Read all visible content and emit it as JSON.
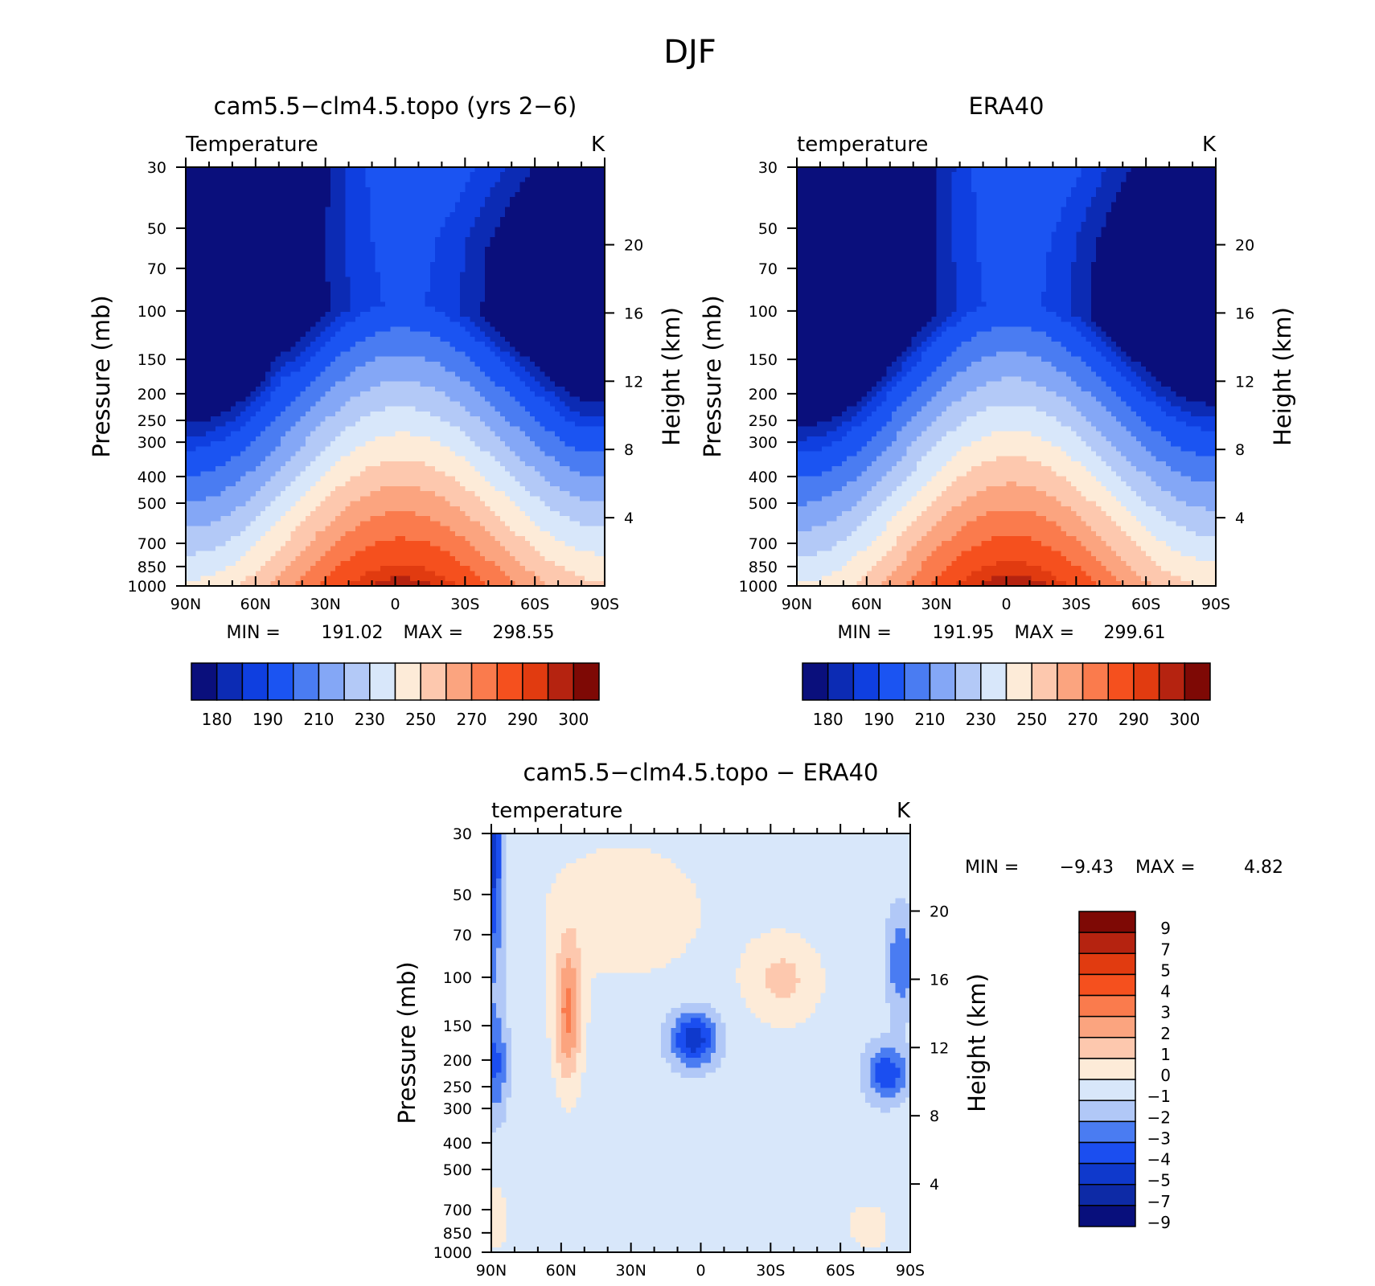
{
  "figure": {
    "title": "DJF"
  },
  "colors": {
    "temp_palette": [
      "#0a0f7c",
      "#0c2bb4",
      "#0f3fe0",
      "#1b54f2",
      "#4a7cf2",
      "#84a7f6",
      "#b3c9f7",
      "#d8e7fa",
      "#fdebd8",
      "#fdc8ae",
      "#fba47f",
      "#fa7b4d",
      "#f5501e",
      "#e13b10",
      "#b52310",
      "#7e0905"
    ],
    "diff_palette": [
      "#080f7c",
      "#0d2aa6",
      "#0f39cc",
      "#1b4ef0",
      "#4a7cf2",
      "#b1c8f7",
      "#d8e7fa",
      "#fdebd8",
      "#fdc8ae",
      "#fba47f",
      "#fa7b4d",
      "#f5501e",
      "#e13b10",
      "#b52310",
      "#7e0905"
    ]
  },
  "chart_data": [
    {
      "id": "model",
      "type": "heatmap",
      "title": "cam5.5−clm4.5.topo (yrs 2−6)",
      "subtitle_left": "Temperature",
      "subtitle_right": "K",
      "ylabel": "Pressure (mb)",
      "ylabel_right": "Height (km)",
      "x_ticks": [
        "90N",
        "60N",
        "30N",
        "0",
        "30S",
        "60S",
        "90S"
      ],
      "y_ticks": [
        "30",
        "50",
        "70",
        "100",
        "150",
        "200",
        "250",
        "300",
        "400",
        "500",
        "700",
        "850",
        "1000"
      ],
      "height_ticks": [
        "20",
        "16",
        "12",
        "8",
        "4"
      ],
      "min_label": "MIN =",
      "min_value": "191.02",
      "max_label": "MAX =",
      "max_value": "298.55",
      "colorbar_labels": [
        "180",
        "190",
        "210",
        "230",
        "250",
        "270",
        "290",
        "300"
      ],
      "contour_levels": [
        180,
        185,
        190,
        200,
        210,
        220,
        230,
        240,
        250,
        260,
        270,
        280,
        290,
        295,
        300
      ],
      "min": 191.02,
      "max": 298.55
    },
    {
      "id": "obs",
      "type": "heatmap",
      "title": "ERA40",
      "subtitle_left": "temperature",
      "subtitle_right": "K",
      "ylabel": "Pressure (mb)",
      "ylabel_right": "Height (km)",
      "x_ticks": [
        "90N",
        "60N",
        "30N",
        "0",
        "30S",
        "60S",
        "90S"
      ],
      "y_ticks": [
        "30",
        "50",
        "70",
        "100",
        "150",
        "200",
        "250",
        "300",
        "400",
        "500",
        "700",
        "850",
        "1000"
      ],
      "height_ticks": [
        "20",
        "16",
        "12",
        "8",
        "4"
      ],
      "min_label": "MIN =",
      "min_value": "191.95",
      "max_label": "MAX =",
      "max_value": "299.61",
      "colorbar_labels": [
        "180",
        "190",
        "210",
        "230",
        "250",
        "270",
        "290",
        "300"
      ],
      "contour_levels": [
        180,
        185,
        190,
        200,
        210,
        220,
        230,
        240,
        250,
        260,
        270,
        280,
        290,
        295,
        300
      ],
      "min": 191.95,
      "max": 299.61
    },
    {
      "id": "diff",
      "type": "heatmap",
      "title": "cam5.5−clm4.5.topo − ERA40",
      "subtitle_left": "temperature",
      "subtitle_right": "K",
      "ylabel": "Pressure (mb)",
      "ylabel_right": "Height (km)",
      "x_ticks": [
        "90N",
        "60N",
        "30N",
        "0",
        "30S",
        "60S",
        "90S"
      ],
      "y_ticks": [
        "30",
        "50",
        "70",
        "100",
        "150",
        "200",
        "250",
        "300",
        "400",
        "500",
        "700",
        "850",
        "1000"
      ],
      "height_ticks": [
        "20",
        "16",
        "12",
        "8",
        "4"
      ],
      "min_label": "MIN =",
      "min_value": "−9.43",
      "max_label": "MAX =",
      "max_value": "4.82",
      "colorbar_labels": [
        "9",
        "7",
        "5",
        "4",
        "3",
        "2",
        "1",
        "0",
        "−1",
        "−2",
        "−3",
        "−4",
        "−5",
        "−7",
        "−9"
      ],
      "contour_levels": [
        -9,
        -7,
        -5,
        -4,
        -3,
        -2,
        -1,
        0,
        1,
        2,
        3,
        4,
        5,
        7,
        9
      ],
      "min": -9.43,
      "max": 4.82
    }
  ]
}
